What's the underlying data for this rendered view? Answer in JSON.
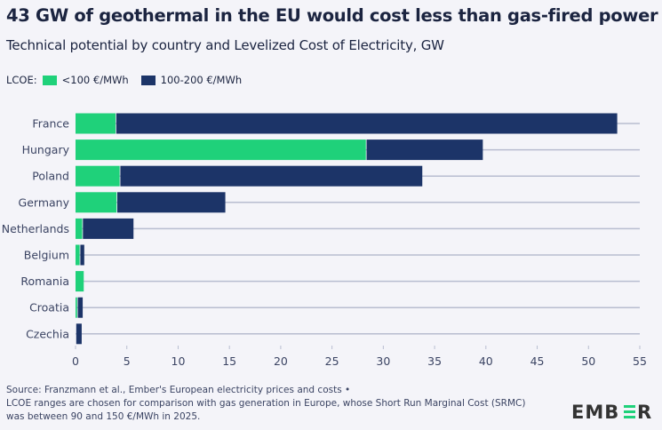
{
  "title": "43 GW of geothermal in the EU would cost less than gas-fired power",
  "subtitle": "Technical potential by country and Levelized Cost of Electricity, GW",
  "legend": {
    "label": "LCOE:",
    "items": [
      "<100 €/MWh",
      "100-200 €/MWh"
    ]
  },
  "source": [
    "Source: Franzmann et al., Ember's European electricity prices and costs •",
    "LCOE ranges are chosen for comparison with gas generation in Europe, whose Short Run Marginal Cost (SRMC)",
    "was between 90 and 150 €/MWh in 2025."
  ],
  "logo": "EMBER",
  "colors": {
    "low": "#1fd17a",
    "high": "#1c3468",
    "grid": "#b8bdd0",
    "background": "#f4f4f9"
  },
  "chart_data": {
    "type": "bar",
    "orientation": "horizontal",
    "stacked": true,
    "categories": [
      "France",
      "Hungary",
      "Poland",
      "Germany",
      "Netherlands",
      "Belgium",
      "Romania",
      "Croatia",
      "Czechia"
    ],
    "series": [
      {
        "name": "<100 €/MWh",
        "values": [
          3.9,
          28.3,
          4.3,
          4.0,
          0.65,
          0.4,
          0.8,
          0.15,
          0
        ]
      },
      {
        "name": "100-200 €/MWh",
        "values": [
          48.9,
          11.4,
          29.5,
          10.6,
          5.0,
          0.45,
          0,
          0.55,
          0.6
        ]
      }
    ],
    "xlim": [
      0,
      55
    ],
    "xticks": [
      0,
      5,
      10,
      15,
      20,
      25,
      30,
      35,
      40,
      45,
      50,
      55
    ],
    "grid": "horizontal lines per category",
    "legend_position": "top-left"
  }
}
